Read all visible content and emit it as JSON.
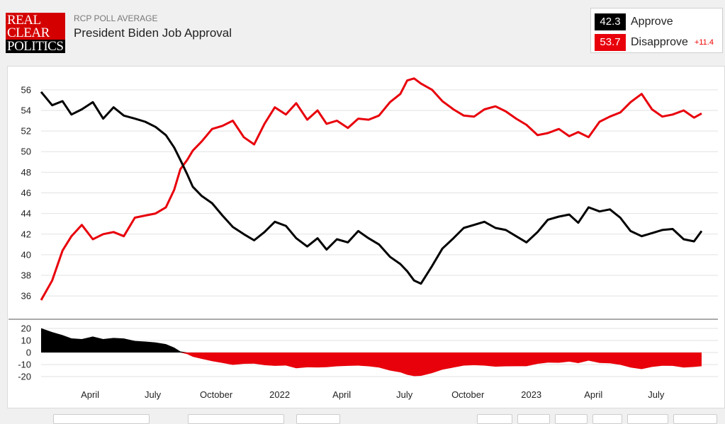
{
  "header": {
    "logo_lines": [
      "REAL",
      "CLEAR",
      "POLITICS"
    ],
    "kicker": "RCP POLL AVERAGE",
    "title": "President Biden Job Approval"
  },
  "legend": {
    "approve": {
      "value": "42.3",
      "label": "Approve",
      "color": "#000000"
    },
    "disapprove": {
      "value": "53.7",
      "label": "Disapprove",
      "color": "#e8000b",
      "spread": "+11.4"
    }
  },
  "chart_data": {
    "type": "line",
    "x_range": [
      "2021-01-20",
      "2023-09-05"
    ],
    "y_range": [
      34.5,
      57.5
    ],
    "y_ticks": [
      "36",
      "38",
      "40",
      "42",
      "44",
      "46",
      "48",
      "50",
      "52",
      "54",
      "56"
    ],
    "spread_ticks": [
      "20",
      "10",
      "0",
      "-10",
      "-20"
    ],
    "spread_range": [
      -22,
      22
    ],
    "x_tick_labels": [
      {
        "date": "2021-04-01",
        "label": "April"
      },
      {
        "date": "2021-07-01",
        "label": "July"
      },
      {
        "date": "2021-10-01",
        "label": "October"
      },
      {
        "date": "2022-01-01",
        "label": "2022"
      },
      {
        "date": "2022-04-01",
        "label": "April"
      },
      {
        "date": "2022-07-01",
        "label": "July"
      },
      {
        "date": "2022-10-01",
        "label": "October"
      },
      {
        "date": "2023-01-01",
        "label": "2023"
      },
      {
        "date": "2023-04-01",
        "label": "April"
      },
      {
        "date": "2023-07-01",
        "label": "July"
      }
    ],
    "series": [
      {
        "name": "Approve",
        "color": "#000000",
        "x": [
          "2021-01-20",
          "2021-02-05",
          "2021-02-20",
          "2021-03-05",
          "2021-03-20",
          "2021-04-05",
          "2021-04-20",
          "2021-05-05",
          "2021-05-20",
          "2021-06-05",
          "2021-06-20",
          "2021-07-05",
          "2021-07-20",
          "2021-08-01",
          "2021-08-10",
          "2021-08-20",
          "2021-08-28",
          "2021-09-10",
          "2021-09-25",
          "2021-10-10",
          "2021-10-25",
          "2021-11-10",
          "2021-11-25",
          "2021-12-10",
          "2021-12-25",
          "2022-01-10",
          "2022-01-25",
          "2022-02-10",
          "2022-02-25",
          "2022-03-10",
          "2022-03-25",
          "2022-04-10",
          "2022-04-25",
          "2022-05-10",
          "2022-05-25",
          "2022-06-10",
          "2022-06-25",
          "2022-07-05",
          "2022-07-15",
          "2022-07-25",
          "2022-08-10",
          "2022-08-25",
          "2022-09-10",
          "2022-09-25",
          "2022-10-10",
          "2022-10-25",
          "2022-11-10",
          "2022-11-25",
          "2022-12-10",
          "2022-12-25",
          "2023-01-10",
          "2023-01-25",
          "2023-02-10",
          "2023-02-25",
          "2023-03-10",
          "2023-03-25",
          "2023-04-10",
          "2023-04-25",
          "2023-05-10",
          "2023-05-25",
          "2023-06-10",
          "2023-06-25",
          "2023-07-10",
          "2023-07-25",
          "2023-08-10",
          "2023-08-25",
          "2023-09-05"
        ],
        "values": [
          55.8,
          54.5,
          54.9,
          53.6,
          54.1,
          54.8,
          53.2,
          54.3,
          53.5,
          53.2,
          52.9,
          52.4,
          51.6,
          50.4,
          49.2,
          47.8,
          46.6,
          45.7,
          45.0,
          43.8,
          42.7,
          42.0,
          41.4,
          42.2,
          43.2,
          42.8,
          41.6,
          40.8,
          41.6,
          40.5,
          41.5,
          41.2,
          42.3,
          41.6,
          41.0,
          39.8,
          39.1,
          38.4,
          37.5,
          37.2,
          38.9,
          40.6,
          41.6,
          42.6,
          42.9,
          43.2,
          42.6,
          42.4,
          41.8,
          41.2,
          42.2,
          43.4,
          43.7,
          43.9,
          43.1,
          44.6,
          44.2,
          44.4,
          43.6,
          42.3,
          41.8,
          42.1,
          42.4,
          42.5,
          41.5,
          41.3,
          42.3
        ]
      },
      {
        "name": "Disapprove",
        "color": "#e8000b",
        "x": [
          "2021-01-20",
          "2021-02-05",
          "2021-02-20",
          "2021-03-05",
          "2021-03-20",
          "2021-04-05",
          "2021-04-20",
          "2021-05-05",
          "2021-05-20",
          "2021-06-05",
          "2021-06-20",
          "2021-07-05",
          "2021-07-20",
          "2021-08-01",
          "2021-08-10",
          "2021-08-20",
          "2021-08-28",
          "2021-09-10",
          "2021-09-25",
          "2021-10-10",
          "2021-10-25",
          "2021-11-10",
          "2021-11-25",
          "2021-12-10",
          "2021-12-25",
          "2022-01-10",
          "2022-01-25",
          "2022-02-10",
          "2022-02-25",
          "2022-03-10",
          "2022-03-25",
          "2022-04-10",
          "2022-04-25",
          "2022-05-10",
          "2022-05-25",
          "2022-06-10",
          "2022-06-25",
          "2022-07-05",
          "2022-07-15",
          "2022-07-25",
          "2022-08-10",
          "2022-08-25",
          "2022-09-10",
          "2022-09-25",
          "2022-10-10",
          "2022-10-25",
          "2022-11-10",
          "2022-11-25",
          "2022-12-10",
          "2022-12-25",
          "2023-01-10",
          "2023-01-25",
          "2023-02-10",
          "2023-02-25",
          "2023-03-10",
          "2023-03-25",
          "2023-04-10",
          "2023-04-25",
          "2023-05-10",
          "2023-05-25",
          "2023-06-10",
          "2023-06-25",
          "2023-07-10",
          "2023-07-25",
          "2023-08-10",
          "2023-08-25",
          "2023-09-05"
        ],
        "values": [
          35.6,
          37.5,
          40.4,
          41.8,
          42.9,
          41.5,
          42.0,
          42.2,
          41.8,
          43.6,
          43.8,
          44.0,
          44.6,
          46.3,
          48.3,
          49.2,
          50.1,
          51.0,
          52.2,
          52.5,
          53.0,
          51.4,
          50.7,
          52.7,
          54.3,
          53.6,
          54.7,
          53.1,
          54.0,
          52.7,
          53.0,
          52.3,
          53.2,
          53.1,
          53.5,
          54.8,
          55.6,
          56.9,
          57.1,
          56.6,
          56.0,
          54.9,
          54.1,
          53.5,
          53.4,
          54.1,
          54.4,
          53.9,
          53.2,
          52.6,
          51.6,
          51.8,
          52.2,
          51.5,
          51.9,
          51.4,
          52.9,
          53.4,
          53.8,
          54.8,
          55.6,
          54.1,
          53.4,
          53.6,
          54.0,
          53.3,
          53.7
        ]
      }
    ]
  }
}
